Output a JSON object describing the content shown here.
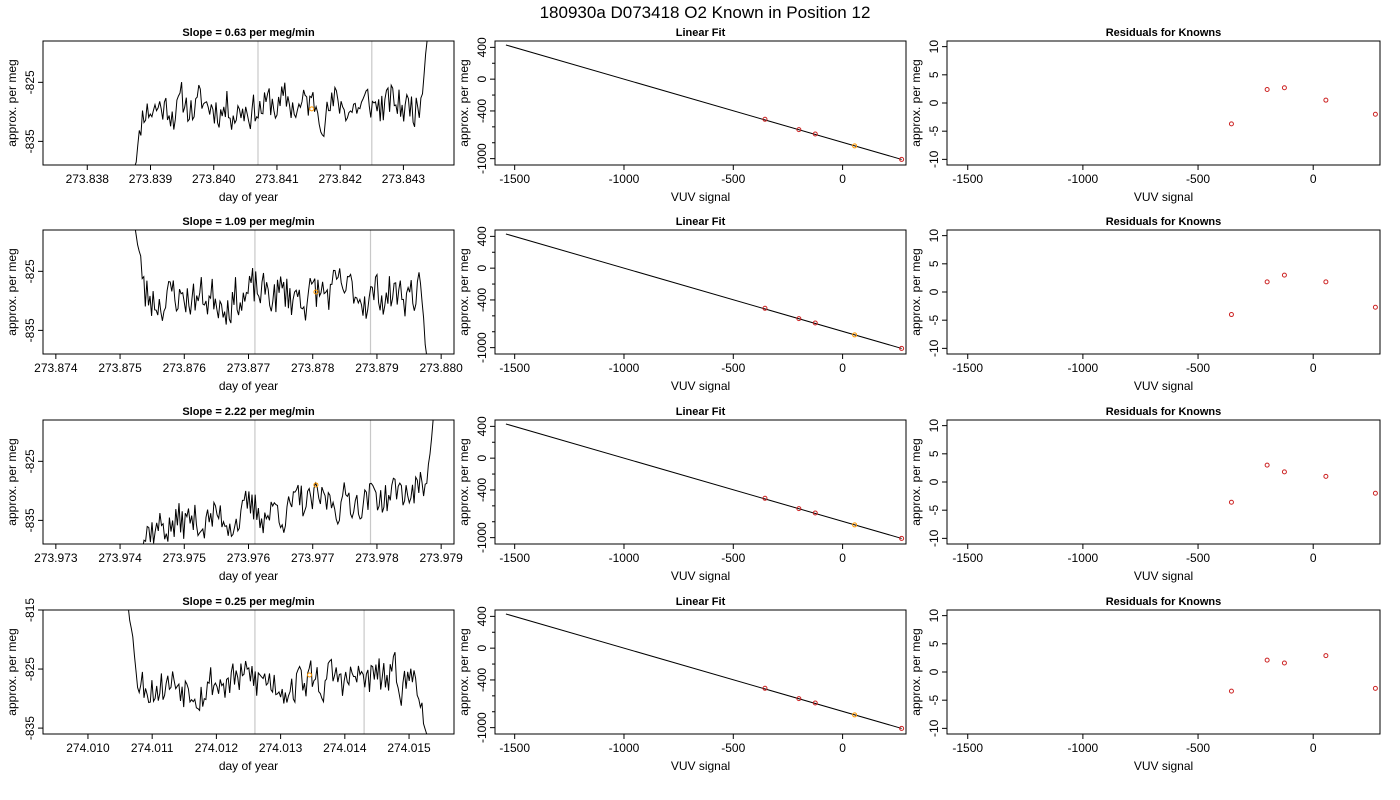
{
  "page": {
    "title": "180930a      D073418   O2 Known in Position  12"
  },
  "colors": {
    "trace": "#000000",
    "vline": "#c8c8c8",
    "known_marker": "#cc2222",
    "highlight_marker": "#ff9900"
  },
  "chart_data": [
    {
      "id": "trace-row1",
      "type": "line",
      "title": "Slope =  0.63  per meg/min",
      "xlabel": "day of year",
      "ylabel": "approx. per meg",
      "xlim": [
        273.8373,
        273.8438
      ],
      "ylim": [
        -839,
        -818
      ],
      "xticks": [
        "273.838",
        "273.839",
        "273.840",
        "273.841",
        "273.842",
        "273.843"
      ],
      "yticks": [
        "-825",
        "-835"
      ],
      "vlines": [
        273.8407,
        273.8425
      ],
      "start": 273.8387,
      "end": 273.8434,
      "center": -829,
      "noise": 2.2,
      "drift": 0.0,
      "head": -842,
      "tail": -815,
      "seed": 11,
      "highlight": [
        273.84155,
        -829.5
      ]
    },
    {
      "id": "fit-row1",
      "type": "scatter",
      "title": "Linear Fit",
      "xlabel": "VUV signal",
      "ylabel": "approx. per meg",
      "xlim": [
        -1590,
        290
      ],
      "ylim": [
        -1080,
        480
      ],
      "xticks": [
        "-1500",
        "-1000",
        "-500",
        "0"
      ],
      "yticks": [
        "400",
        "0",
        "-400",
        "-1000"
      ],
      "line": [
        [
          -1540,
          430
        ],
        [
          270,
          -1010
        ]
      ],
      "points": [
        [
          -355,
          -505
        ],
        [
          -200,
          -635
        ],
        [
          -125,
          -690
        ],
        [
          55,
          -840
        ],
        [
          270,
          -1010
        ]
      ],
      "highlight_index": 3
    },
    {
      "id": "resid-row1",
      "type": "scatter",
      "title": "Residuals for Knowns",
      "xlabel": "VUV signal",
      "ylabel": "approx. per meg",
      "xlim": [
        -1590,
        290
      ],
      "ylim": [
        -11,
        11
      ],
      "xticks": [
        "-1500",
        "-1000",
        "-500",
        "0"
      ],
      "yticks": [
        "10",
        "5",
        "0",
        "-5",
        "-10"
      ],
      "points": [
        [
          -355,
          -3.7
        ],
        [
          -200,
          2.4
        ],
        [
          -125,
          2.7
        ],
        [
          55,
          0.5
        ],
        [
          270,
          -2.0
        ]
      ]
    },
    {
      "id": "trace-row2",
      "type": "line",
      "title": "Slope =  1.09  per meg/min",
      "xlabel": "day of year",
      "ylabel": "approx. per meg",
      "xlim": [
        273.8738,
        273.8802
      ],
      "ylim": [
        -839,
        -818
      ],
      "xticks": [
        "273.874",
        "273.875",
        "273.876",
        "273.877",
        "273.878",
        "273.879",
        "273.880"
      ],
      "yticks": [
        "-825",
        "-835"
      ],
      "vlines": [
        273.8771,
        273.8789
      ],
      "start": 273.8752,
      "end": 273.8798,
      "center": -829,
      "noise": 2.4,
      "drift": 0.8,
      "head": -815,
      "tail": -842,
      "seed": 23,
      "highlight": [
        273.87805,
        -828.5
      ]
    },
    {
      "id": "fit-row2",
      "type": "scatter",
      "title": "Linear Fit",
      "xlabel": "VUV signal",
      "ylabel": "approx. per meg",
      "xlim": [
        -1590,
        290
      ],
      "ylim": [
        -1080,
        480
      ],
      "xticks": [
        "-1500",
        "-1000",
        "-500",
        "0"
      ],
      "yticks": [
        "400",
        "0",
        "-400",
        "-1000"
      ],
      "line": [
        [
          -1540,
          430
        ],
        [
          270,
          -1010
        ]
      ],
      "points": [
        [
          -355,
          -505
        ],
        [
          -200,
          -635
        ],
        [
          -125,
          -690
        ],
        [
          55,
          -840
        ],
        [
          270,
          -1010
        ]
      ],
      "highlight_index": 3
    },
    {
      "id": "resid-row2",
      "type": "scatter",
      "title": "Residuals for Knowns",
      "xlabel": "VUV signal",
      "ylabel": "approx. per meg",
      "xlim": [
        -1590,
        290
      ],
      "ylim": [
        -11,
        11
      ],
      "xticks": [
        "-1500",
        "-1000",
        "-500",
        "0"
      ],
      "yticks": [
        "10",
        "5",
        "0",
        "-5",
        "-10"
      ],
      "points": [
        [
          -355,
          -4.0
        ],
        [
          -200,
          1.8
        ],
        [
          -125,
          3.0
        ],
        [
          55,
          1.8
        ],
        [
          270,
          -2.7
        ]
      ]
    },
    {
      "id": "trace-row3",
      "type": "line",
      "title": "Slope =  2.22  per meg/min",
      "xlabel": "day of year",
      "ylabel": "approx. per meg",
      "xlim": [
        273.9728,
        273.9792
      ],
      "ylim": [
        -839,
        -818
      ],
      "xticks": [
        "273.973",
        "273.974",
        "273.975",
        "273.976",
        "273.977",
        "273.978",
        "273.979"
      ],
      "yticks": [
        "-825",
        "-835"
      ],
      "vlines": [
        273.9761,
        273.9779
      ],
      "start": 273.9742,
      "end": 273.9789,
      "center": -833,
      "noise": 2.1,
      "drift": 7.0,
      "head": -842,
      "tail": -815,
      "seed": 37,
      "highlight": [
        273.97705,
        -829
      ]
    },
    {
      "id": "fit-row3",
      "type": "scatter",
      "title": "Linear Fit",
      "xlabel": "VUV signal",
      "ylabel": "approx. per meg",
      "xlim": [
        -1590,
        290
      ],
      "ylim": [
        -1080,
        480
      ],
      "xticks": [
        "-1500",
        "-1000",
        "-500",
        "0"
      ],
      "yticks": [
        "400",
        "0",
        "-400",
        "-1000"
      ],
      "line": [
        [
          -1540,
          430
        ],
        [
          270,
          -1010
        ]
      ],
      "points": [
        [
          -355,
          -505
        ],
        [
          -200,
          -635
        ],
        [
          -125,
          -690
        ],
        [
          55,
          -840
        ],
        [
          270,
          -1010
        ]
      ],
      "highlight_index": 3
    },
    {
      "id": "resid-row3",
      "type": "scatter",
      "title": "Residuals for Knowns",
      "xlabel": "VUV signal",
      "ylabel": "approx. per meg",
      "xlim": [
        -1590,
        290
      ],
      "ylim": [
        -11,
        11
      ],
      "xticks": [
        "-1500",
        "-1000",
        "-500",
        "0"
      ],
      "yticks": [
        "10",
        "5",
        "0",
        "-5",
        "-10"
      ],
      "points": [
        [
          -355,
          -3.6
        ],
        [
          -200,
          3.0
        ],
        [
          -125,
          1.8
        ],
        [
          55,
          1.0
        ],
        [
          270,
          -2.0
        ]
      ]
    },
    {
      "id": "trace-row4",
      "type": "line",
      "title": "Slope =  0.25  per meg/min",
      "xlabel": "day of year",
      "ylabel": "approx. per meg",
      "xlim": [
        274.0093,
        274.0157
      ],
      "ylim": [
        -836,
        -815
      ],
      "xticks": [
        "274.010",
        "274.011",
        "274.012",
        "274.013",
        "274.014",
        "274.015"
      ],
      "yticks": [
        "-815",
        "-825",
        "-835"
      ],
      "vlines": [
        274.0126,
        274.0143
      ],
      "start": 274.0106,
      "end": 274.0153,
      "center": -827,
      "noise": 2.3,
      "drift": 0.3,
      "head": -812,
      "tail": -838,
      "seed": 53,
      "highlight": [
        274.01345,
        -826
      ]
    },
    {
      "id": "fit-row4",
      "type": "scatter",
      "title": "Linear Fit",
      "xlabel": "VUV signal",
      "ylabel": "approx. per meg",
      "xlim": [
        -1590,
        290
      ],
      "ylim": [
        -1080,
        480
      ],
      "xticks": [
        "-1500",
        "-1000",
        "-500",
        "0"
      ],
      "yticks": [
        "400",
        "0",
        "-400",
        "-1000"
      ],
      "line": [
        [
          -1540,
          430
        ],
        [
          270,
          -1010
        ]
      ],
      "points": [
        [
          -355,
          -505
        ],
        [
          -200,
          -635
        ],
        [
          -125,
          -690
        ],
        [
          55,
          -840
        ],
        [
          270,
          -1010
        ]
      ],
      "highlight_index": 3
    },
    {
      "id": "resid-row4",
      "type": "scatter",
      "title": "Residuals for Knowns",
      "xlabel": "VUV signal",
      "ylabel": "approx. per meg",
      "xlim": [
        -1590,
        290
      ],
      "ylim": [
        -11,
        11
      ],
      "xticks": [
        "-1500",
        "-1000",
        "-500",
        "0"
      ],
      "yticks": [
        "10",
        "5",
        "0",
        "-5",
        "-10"
      ],
      "points": [
        [
          -355,
          -3.4
        ],
        [
          -200,
          2.1
        ],
        [
          -125,
          1.6
        ],
        [
          55,
          2.9
        ],
        [
          270,
          -2.9
        ]
      ]
    }
  ]
}
